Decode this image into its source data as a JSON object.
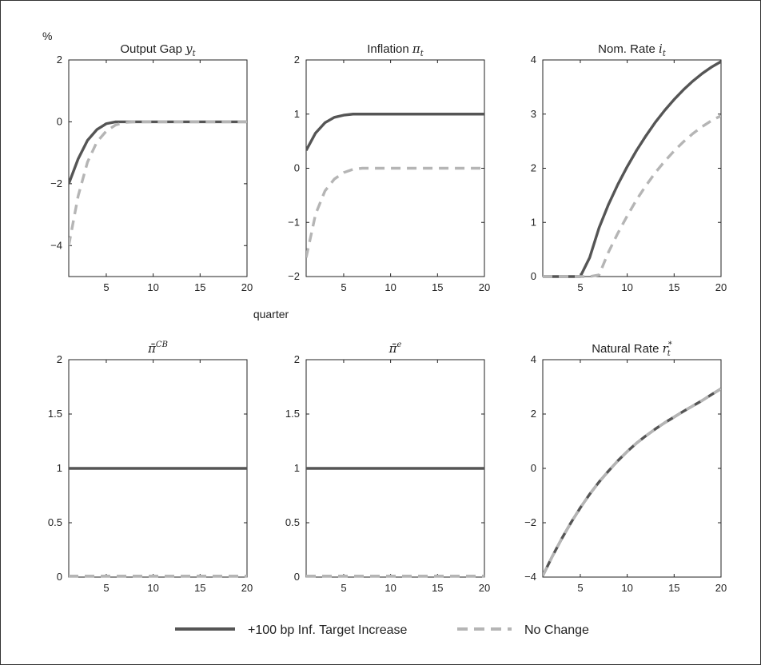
{
  "figure": {
    "unit_label": "%",
    "xlabel": "quarter",
    "legend": [
      {
        "label": "+100 bp Inf. Target Increase",
        "style": "solid",
        "color": "#555555"
      },
      {
        "label": "No Change",
        "style": "dashed",
        "color": "#b5b5b5"
      }
    ]
  },
  "chart_data": [
    {
      "type": "line",
      "title_text": "Output Gap ",
      "title_math": "y",
      "title_sub": "t",
      "title_sup": "",
      "xlim": [
        1,
        20
      ],
      "ylim": [
        -5,
        2
      ],
      "xticks": [
        5,
        10,
        15,
        20
      ],
      "yticks": [
        -4,
        -2,
        0,
        2
      ],
      "ytick_labels": [
        "−4",
        "−2",
        "0",
        "2"
      ],
      "x": [
        1,
        2,
        3,
        4,
        5,
        6,
        7,
        8,
        9,
        10,
        11,
        12,
        13,
        14,
        15,
        16,
        17,
        18,
        19,
        20
      ],
      "series": [
        {
          "name": "+100 bp Inf. Target Increase",
          "values": [
            -2.0,
            -1.2,
            -0.6,
            -0.25,
            -0.06,
            0,
            0,
            0,
            0,
            0,
            0,
            0,
            0,
            0,
            0,
            0,
            0,
            0,
            0,
            0
          ]
        },
        {
          "name": "No Change",
          "values": [
            -4.0,
            -2.4,
            -1.3,
            -0.65,
            -0.3,
            -0.1,
            -0.02,
            0,
            0,
            0,
            0,
            0,
            0,
            0,
            0,
            0,
            0,
            0,
            0,
            0
          ]
        }
      ]
    },
    {
      "type": "line",
      "title_text": "Inflation ",
      "title_math": "π",
      "title_sub": "t",
      "title_sup": "",
      "xlim": [
        1,
        20
      ],
      "ylim": [
        -2,
        2
      ],
      "xticks": [
        5,
        10,
        15,
        20
      ],
      "yticks": [
        -2,
        -1,
        0,
        1,
        2
      ],
      "ytick_labels": [
        "−2",
        "−1",
        "0",
        "1",
        "2"
      ],
      "x": [
        1,
        2,
        3,
        4,
        5,
        6,
        7,
        8,
        9,
        10,
        11,
        12,
        13,
        14,
        15,
        16,
        17,
        18,
        19,
        20
      ],
      "series": [
        {
          "name": "+100 bp Inf. Target Increase",
          "values": [
            0.33,
            0.65,
            0.84,
            0.94,
            0.98,
            1.0,
            1.0,
            1.0,
            1.0,
            1.0,
            1.0,
            1.0,
            1.0,
            1.0,
            1.0,
            1.0,
            1.0,
            1.0,
            1.0,
            1.0
          ]
        },
        {
          "name": "No Change",
          "values": [
            -1.65,
            -0.85,
            -0.42,
            -0.2,
            -0.08,
            -0.02,
            0,
            0,
            0,
            0,
            0,
            0,
            0,
            0,
            0,
            0,
            0,
            0,
            0,
            0
          ]
        }
      ]
    },
    {
      "type": "line",
      "title_text": "Nom. Rate ",
      "title_math": "i",
      "title_sub": "t",
      "title_sup": "",
      "xlim": [
        1,
        20
      ],
      "ylim": [
        0,
        4
      ],
      "xticks": [
        5,
        10,
        15,
        20
      ],
      "yticks": [
        0,
        1,
        2,
        3,
        4
      ],
      "ytick_labels": [
        "0",
        "1",
        "2",
        "3",
        "4"
      ],
      "x": [
        1,
        2,
        3,
        4,
        5,
        6,
        7,
        8,
        9,
        10,
        11,
        12,
        13,
        14,
        15,
        16,
        17,
        18,
        19,
        20
      ],
      "series": [
        {
          "name": "+100 bp Inf. Target Increase",
          "values": [
            0,
            0,
            0,
            0,
            0,
            0.35,
            0.9,
            1.33,
            1.7,
            2.03,
            2.33,
            2.6,
            2.85,
            3.07,
            3.27,
            3.45,
            3.61,
            3.75,
            3.87,
            3.97
          ]
        },
        {
          "name": "No Change",
          "values": [
            0,
            0,
            0,
            0,
            0,
            0,
            0.03,
            0.45,
            0.8,
            1.12,
            1.42,
            1.68,
            1.92,
            2.13,
            2.32,
            2.49,
            2.64,
            2.77,
            2.88,
            2.97
          ]
        }
      ]
    },
    {
      "type": "line",
      "title_text": "",
      "title_math": "π̄",
      "title_sub": "",
      "title_sup": "CB",
      "xlim": [
        1,
        20
      ],
      "ylim": [
        0,
        2
      ],
      "xticks": [
        5,
        10,
        15,
        20
      ],
      "yticks": [
        0,
        0.5,
        1,
        1.5,
        2
      ],
      "ytick_labels": [
        "0",
        "0.5",
        "1",
        "1.5",
        "2"
      ],
      "x": [
        1,
        20
      ],
      "series": [
        {
          "name": "+100 bp Inf. Target Increase",
          "values": [
            1,
            1
          ]
        },
        {
          "name": "No Change",
          "values": [
            0.01,
            0.01
          ]
        }
      ]
    },
    {
      "type": "line",
      "title_text": "",
      "title_math": "π̄",
      "title_sub": "",
      "title_sup": "e",
      "xlim": [
        1,
        20
      ],
      "ylim": [
        0,
        2
      ],
      "xticks": [
        5,
        10,
        15,
        20
      ],
      "yticks": [
        0,
        0.5,
        1,
        1.5,
        2
      ],
      "ytick_labels": [
        "0",
        "0.5",
        "1",
        "1.5",
        "2"
      ],
      "x": [
        1,
        20
      ],
      "series": [
        {
          "name": "+100 bp Inf. Target Increase",
          "values": [
            1,
            1
          ]
        },
        {
          "name": "No Change",
          "values": [
            0.01,
            0.01
          ]
        }
      ]
    },
    {
      "type": "line",
      "title_text": "Natural Rate ",
      "title_math": "r",
      "title_sub": "t",
      "title_sup": "*",
      "xlim": [
        1,
        20
      ],
      "ylim": [
        -4,
        4
      ],
      "xticks": [
        5,
        10,
        15,
        20
      ],
      "yticks": [
        -4,
        -2,
        0,
        2,
        4
      ],
      "ytick_labels": [
        "−4",
        "−2",
        "0",
        "2",
        "4"
      ],
      "x": [
        1,
        2,
        3,
        4,
        5,
        6,
        7,
        8,
        9,
        10,
        11,
        12,
        13,
        14,
        15,
        16,
        17,
        18,
        19,
        20
      ],
      "series": [
        {
          "name": "+100 bp Inf. Target Increase",
          "values": [
            -3.95,
            -3.25,
            -2.6,
            -2.0,
            -1.45,
            -0.95,
            -0.5,
            -0.1,
            0.28,
            0.62,
            0.93,
            1.2,
            1.45,
            1.68,
            1.89,
            2.1,
            2.3,
            2.5,
            2.72,
            2.93
          ]
        },
        {
          "name": "No Change",
          "values": [
            -3.95,
            -3.25,
            -2.6,
            -2.0,
            -1.45,
            -0.95,
            -0.5,
            -0.1,
            0.28,
            0.62,
            0.93,
            1.2,
            1.45,
            1.68,
            1.89,
            2.1,
            2.3,
            2.5,
            2.72,
            2.93
          ]
        }
      ]
    }
  ]
}
